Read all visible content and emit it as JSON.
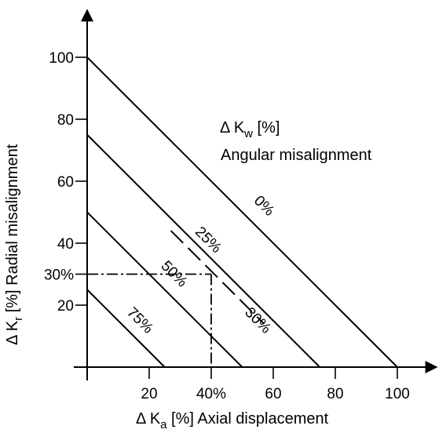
{
  "chart_data": {
    "type": "line",
    "title": "",
    "xlabel": {
      "prefix": "Δ K",
      "sub": "a",
      "suffix": " [%]  Axial displacement"
    },
    "ylabel": {
      "prefix": "Δ K",
      "sub": "r",
      "suffix": " [%]  Radial misalignment"
    },
    "legend": {
      "line1": {
        "prefix": "Δ K",
        "sub": "w",
        "suffix": "  [%]"
      },
      "line2": "Angular misalignment"
    },
    "xlim": [
      0,
      100
    ],
    "ylim": [
      0,
      100
    ],
    "x_ticks": [
      {
        "value": 20,
        "label": "20"
      },
      {
        "value": 40,
        "label": "40%"
      },
      {
        "value": 60,
        "label": "60"
      },
      {
        "value": 80,
        "label": "80"
      },
      {
        "value": 100,
        "label": "100"
      }
    ],
    "y_ticks": [
      {
        "value": 20,
        "label": "20"
      },
      {
        "value": 30,
        "label": "30%"
      },
      {
        "value": 40,
        "label": "40"
      },
      {
        "value": 60,
        "label": "60"
      },
      {
        "value": 80,
        "label": "80"
      },
      {
        "value": 100,
        "label": "100"
      }
    ],
    "series": [
      {
        "name": "0%",
        "x": [
          0,
          100
        ],
        "y": [
          100,
          0
        ],
        "label_at": [
          56,
          51
        ]
      },
      {
        "name": "25%",
        "x": [
          0,
          75
        ],
        "y": [
          75,
          0
        ],
        "label_at": [
          38,
          40
        ]
      },
      {
        "name": "50%",
        "x": [
          0,
          50
        ],
        "y": [
          50,
          0
        ],
        "label_at": [
          27,
          29
        ]
      },
      {
        "name": "75%",
        "x": [
          0,
          25
        ],
        "y": [
          25,
          0
        ],
        "label_at": [
          16,
          14
        ]
      }
    ],
    "reference": {
      "name": "30%",
      "x": [
        27,
        57
      ],
      "y": [
        44,
        14
      ],
      "label_at": [
        54,
        14
      ]
    },
    "example": {
      "x": 40,
      "y": 30
    }
  }
}
